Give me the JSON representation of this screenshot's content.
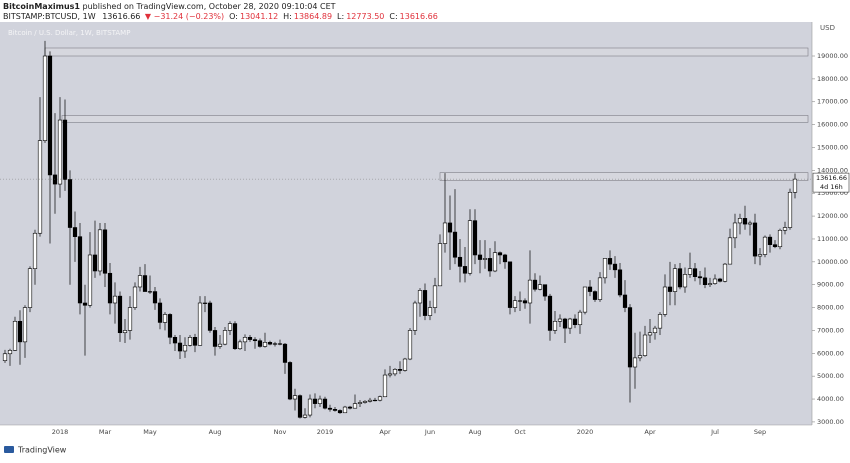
{
  "header": {
    "author": "BitcoinMaximus1",
    "published": "published on TradingView.com, October 28, 2020 09:10:04 CET",
    "symbol": "BITSTAMP:BTCUSD, 1W",
    "last": "13616.66",
    "change": "▼ −31.24 (−0.23%)",
    "ohlc": [
      {
        "label": "O:",
        "value": "13041.12"
      },
      {
        "label": "H:",
        "value": "13864.89"
      },
      {
        "label": "L:",
        "value": "12773.50"
      },
      {
        "label": "C:",
        "value": "13616.66"
      }
    ]
  },
  "chart_data": {
    "type": "candlestick",
    "title": "Bitcoin / U.S. Dollar, 1W, BITSTAMP",
    "categories": [
      null,
      null,
      null,
      null,
      null,
      null,
      null,
      null,
      null,
      null,
      null,
      "2018",
      null,
      null,
      null,
      null,
      null,
      null,
      null,
      null,
      "Mar",
      null,
      null,
      null,
      null,
      null,
      null,
      null,
      null,
      "May",
      null,
      null,
      null,
      null,
      null,
      null,
      null,
      null,
      null,
      null,
      null,
      null,
      "Aug",
      null,
      null,
      null,
      null,
      null,
      null,
      null,
      null,
      null,
      null,
      null,
      null,
      "Nov",
      null,
      null,
      null,
      null,
      null,
      null,
      null,
      null,
      "2019",
      null,
      null,
      null,
      null,
      null,
      null,
      null,
      null,
      null,
      null,
      null,
      "Apr",
      null,
      null,
      null,
      null,
      null,
      null,
      null,
      null,
      "Jun",
      null,
      null,
      null,
      null,
      null,
      null,
      null,
      null,
      "Aug",
      null,
      null,
      null,
      null,
      null,
      null,
      null,
      null,
      "Oct",
      null,
      null,
      null,
      null,
      null,
      null,
      null,
      null,
      null,
      null,
      null,
      null,
      "2020",
      null,
      null,
      null,
      null,
      null,
      null,
      null,
      null,
      null,
      null,
      null,
      null,
      "Apr",
      null,
      null,
      null,
      null,
      null,
      null,
      null,
      null,
      null,
      null,
      null,
      null,
      "Jul",
      null,
      null,
      null,
      null,
      null,
      null,
      null,
      null,
      "Sep",
      null,
      null,
      null,
      null,
      null,
      null,
      null
    ],
    "open": [
      5680,
      5980,
      6130,
      7400,
      6500,
      8000,
      9700,
      11250,
      15300,
      19000,
      13800,
      13400,
      16200,
      13600,
      11500,
      11100,
      8200,
      8100,
      10300,
      9600,
      11400,
      9500,
      8200,
      8500,
      6900,
      7000,
      8000,
      8900,
      9400,
      8700,
      8700,
      8200,
      7350,
      7700,
      6700,
      6450,
      6100,
      6350,
      6700,
      6350,
      8200,
      8200,
      7000,
      6300,
      6400,
      7000,
      7300,
      6200,
      6500,
      6700,
      6600,
      6550,
      6300,
      6480,
      6400,
      6420,
      6400,
      5600,
      4000,
      4150,
      3200,
      3300,
      4000,
      3800,
      4000,
      3600,
      3550,
      3500,
      3400,
      3650,
      3600,
      3800,
      3850,
      3900,
      3950,
      3950,
      4100,
      5050,
      5100,
      5300,
      5250,
      5750,
      7000,
      8200,
      8750,
      7650,
      8000,
      8950,
      10800,
      11700,
      11300,
      10200,
      9800,
      9500,
      11800,
      10300,
      10100,
      10150,
      9600,
      10400,
      10300,
      10000,
      8000,
      8300,
      8300,
      8200,
      9200,
      8800,
      9000,
      8500,
      7000,
      7400,
      7500,
      7100,
      7500,
      7250,
      7800,
      8900,
      8700,
      8350,
      9300,
      10150,
      9900,
      9650,
      8550,
      8000,
      5400,
      5800,
      5900,
      6800,
      6900,
      7100,
      7700,
      8900,
      8700,
      9700,
      8900,
      9450,
      9700,
      9350,
      9300,
      9000,
      9050,
      9250,
      9150,
      9900,
      11050,
      11700,
      11900,
      11650,
      11700,
      10250,
      10320,
      11080,
      10750,
      10660,
      11380,
      11500,
      13041.12
    ],
    "high": [
      6150,
      6200,
      7600,
      7880,
      8100,
      9800,
      11400,
      17200,
      19660,
      19200,
      16500,
      17200,
      17100,
      14000,
      12200,
      11700,
      9000,
      11300,
      11800,
      11700,
      11700,
      9950,
      9100,
      8700,
      7500,
      8500,
      9100,
      9780,
      9900,
      9400,
      8900,
      8400,
      7800,
      7750,
      6800,
      6800,
      6700,
      6800,
      6850,
      8500,
      8500,
      8300,
      7150,
      6800,
      7150,
      7400,
      7400,
      6600,
      6830,
      6800,
      6700,
      6650,
      6900,
      6550,
      6500,
      6600,
      6450,
      5650,
      4450,
      4200,
      3600,
      4200,
      4250,
      4150,
      4100,
      3750,
      3650,
      3550,
      3700,
      3700,
      4200,
      3950,
      3950,
      4050,
      4050,
      4150,
      5300,
      5450,
      5350,
      5650,
      5800,
      7100,
      8300,
      8850,
      9050,
      8300,
      9300,
      11200,
      13880,
      12900,
      13180,
      11000,
      10650,
      12300,
      12300,
      10950,
      10950,
      10600,
      10900,
      10450,
      10350,
      10000,
      8500,
      8700,
      8400,
      10500,
      9500,
      9400,
      9000,
      8600,
      7850,
      7700,
      7550,
      7550,
      7700,
      7900,
      8900,
      9200,
      8750,
      9550,
      10150,
      10500,
      10250,
      9950,
      9200,
      8150,
      6900,
      6950,
      7200,
      7500,
      7200,
      7800,
      9450,
      10000,
      9900,
      9950,
      9750,
      10400,
      9950,
      9600,
      9750,
      9300,
      9450,
      9300,
      9950,
      11450,
      12100,
      12100,
      12450,
      11800,
      12100,
      10600,
      11150,
      11200,
      10950,
      11450,
      11750,
      13200,
      13864.89
    ],
    "low": [
      5580,
      5450,
      6100,
      5500,
      5800,
      7800,
      9000,
      11100,
      15200,
      10800,
      12100,
      12800,
      13100,
      9000,
      10000,
      7700,
      5900,
      8000,
      9300,
      9400,
      8900,
      7700,
      7300,
      6500,
      6450,
      6600,
      7900,
      8700,
      8800,
      8600,
      7900,
      7050,
      7000,
      6400,
      6100,
      5750,
      5800,
      6300,
      6050,
      6350,
      7800,
      6900,
      5900,
      6200,
      6350,
      6800,
      6150,
      6150,
      6100,
      6500,
      6200,
      6250,
      6250,
      6350,
      6300,
      6350,
      5100,
      3950,
      3500,
      3150,
      3150,
      3200,
      3600,
      3650,
      3550,
      3450,
      3450,
      3350,
      3390,
      3550,
      3600,
      3650,
      3800,
      3850,
      3900,
      3900,
      4100,
      4950,
      5000,
      5100,
      5200,
      5700,
      6800,
      7600,
      7450,
      7450,
      7750,
      8950,
      10400,
      9650,
      9900,
      9100,
      9100,
      9400,
      9900,
      9500,
      9700,
      9350,
      9550,
      9900,
      9700,
      7700,
      7800,
      7850,
      7950,
      7300,
      8700,
      8750,
      8300,
      6550,
      6850,
      7150,
      6450,
      6850,
      7100,
      6850,
      7700,
      8500,
      8250,
      8250,
      9050,
      9650,
      9300,
      8450,
      7800,
      3850,
      4450,
      5650,
      5850,
      6450,
      6600,
      6800,
      7600,
      8100,
      8100,
      8800,
      8650,
      9300,
      9150,
      9000,
      8850,
      8900,
      9000,
      9100,
      9100,
      9900,
      10600,
      11200,
      11400,
      11150,
      9900,
      9850,
      10200,
      10400,
      10600,
      10550,
      11200,
      11400,
      12773.5
    ],
    "close": [
      5980,
      6130,
      7400,
      6500,
      8000,
      9700,
      11250,
      15300,
      19000,
      13800,
      13400,
      16200,
      13600,
      11500,
      11100,
      8200,
      8100,
      10300,
      9600,
      11400,
      9500,
      8200,
      8500,
      6900,
      7000,
      8000,
      8900,
      9400,
      8700,
      8700,
      8200,
      7350,
      7700,
      6700,
      6450,
      6100,
      6350,
      6700,
      6350,
      8200,
      8200,
      7000,
      6300,
      6400,
      7000,
      7300,
      6200,
      6500,
      6700,
      6600,
      6550,
      6300,
      6480,
      6400,
      6420,
      6400,
      5600,
      4000,
      4150,
      3200,
      3300,
      4000,
      3800,
      4000,
      3600,
      3550,
      3500,
      3400,
      3650,
      3600,
      3800,
      3850,
      3900,
      3950,
      3950,
      4100,
      5050,
      5100,
      5300,
      5250,
      5750,
      7000,
      8200,
      8750,
      7650,
      8000,
      8950,
      10800,
      11700,
      11300,
      10200,
      9800,
      9500,
      11800,
      10300,
      10100,
      10150,
      9600,
      10400,
      10300,
      10000,
      8000,
      8300,
      8300,
      8200,
      9200,
      8800,
      9000,
      8500,
      7000,
      7400,
      7500,
      7100,
      7500,
      7250,
      7800,
      8900,
      8700,
      8350,
      9300,
      10150,
      9900,
      9650,
      8550,
      8000,
      5400,
      5800,
      5900,
      6800,
      6900,
      7100,
      7700,
      8900,
      8700,
      9700,
      8900,
      9450,
      9700,
      9350,
      9300,
      9000,
      9050,
      9250,
      9150,
      9900,
      11050,
      11700,
      11900,
      11650,
      11700,
      10250,
      10320,
      11080,
      10750,
      10660,
      11380,
      11500,
      13041.12,
      13616.66
    ],
    "up_color": "#ffffff",
    "down_color": "#000000",
    "background": "#d1d3dc",
    "ylim": [
      2865,
      20487
    ],
    "yticks": [
      {
        "value": 3000,
        "label": "3000.00"
      },
      {
        "value": 4000,
        "label": "4000.00"
      },
      {
        "value": 5000,
        "label": "5000.00"
      },
      {
        "value": 6000,
        "label": "6000.00"
      },
      {
        "value": 7000,
        "label": "7000.00"
      },
      {
        "value": 8000,
        "label": "8000.00"
      },
      {
        "value": 9000,
        "label": "9000.00"
      },
      {
        "value": 10000,
        "label": "10000.00"
      },
      {
        "value": 11000,
        "label": "11000.00"
      },
      {
        "value": 12000,
        "label": "12000.00"
      },
      {
        "value": 13000,
        "label": "13000.00"
      },
      {
        "value": 14000,
        "label": "14000.00"
      },
      {
        "value": 15000,
        "label": "15000.00"
      },
      {
        "value": 16000,
        "label": "16000.00"
      },
      {
        "value": 17000,
        "label": "17000.00"
      },
      {
        "value": 18000,
        "label": "18000.00"
      },
      {
        "value": 19000,
        "label": "19000.00"
      }
    ],
    "y_unit": "USD",
    "zones": [
      [
        19000,
        19350
      ],
      [
        16100,
        16400
      ],
      [
        13560,
        13900
      ]
    ],
    "countdown": "4d 16h"
  },
  "footer": {
    "brand": "TradingView"
  }
}
